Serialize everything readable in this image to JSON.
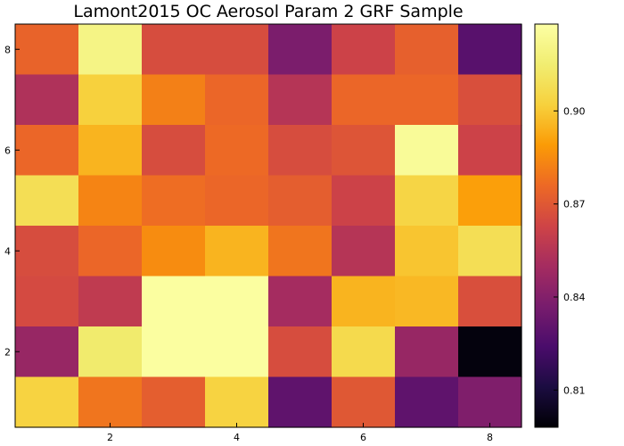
{
  "chart_data": {
    "type": "heatmap",
    "title": "Lamont2015 OC Aerosol Param 2 GRF Sample",
    "xlabel": "",
    "ylabel": "",
    "x_ticks": [
      "2",
      "4",
      "6",
      "8"
    ],
    "y_ticks": [
      "2",
      "4",
      "6",
      "8"
    ],
    "xlim": [
      0.5,
      8.5
    ],
    "ylim": [
      0.5,
      8.5
    ],
    "grid": false,
    "colormap": "inferno",
    "colorbar": {
      "range": [
        0.798,
        0.928
      ],
      "ticks": [
        "0.81",
        "0.84",
        "0.87",
        "0.90"
      ],
      "tick_values": [
        0.81,
        0.84,
        0.87,
        0.9
      ],
      "placement": "right"
    },
    "rows_top_to_bottom_y": [
      8,
      7,
      6,
      5,
      4,
      3,
      2,
      1
    ],
    "cols_x": [
      1,
      2,
      3,
      4,
      5,
      6,
      7,
      8
    ],
    "values": [
      [
        0.874,
        0.92,
        0.866,
        0.866,
        0.838,
        0.862,
        0.873,
        0.828
      ],
      [
        0.853,
        0.902,
        0.882,
        0.875,
        0.855,
        0.875,
        0.875,
        0.867
      ],
      [
        0.875,
        0.895,
        0.866,
        0.876,
        0.866,
        0.869,
        0.925,
        0.862
      ],
      [
        0.908,
        0.883,
        0.877,
        0.875,
        0.872,
        0.862,
        0.904,
        0.89
      ],
      [
        0.866,
        0.875,
        0.885,
        0.895,
        0.879,
        0.855,
        0.899,
        0.908
      ],
      [
        0.865,
        0.858,
        0.927,
        0.927,
        0.85,
        0.895,
        0.896,
        0.867
      ],
      [
        0.846,
        0.914,
        0.927,
        0.927,
        0.866,
        0.906,
        0.846,
        0.8
      ],
      [
        0.903,
        0.879,
        0.872,
        0.903,
        0.83,
        0.87,
        0.83,
        0.839
      ]
    ]
  }
}
